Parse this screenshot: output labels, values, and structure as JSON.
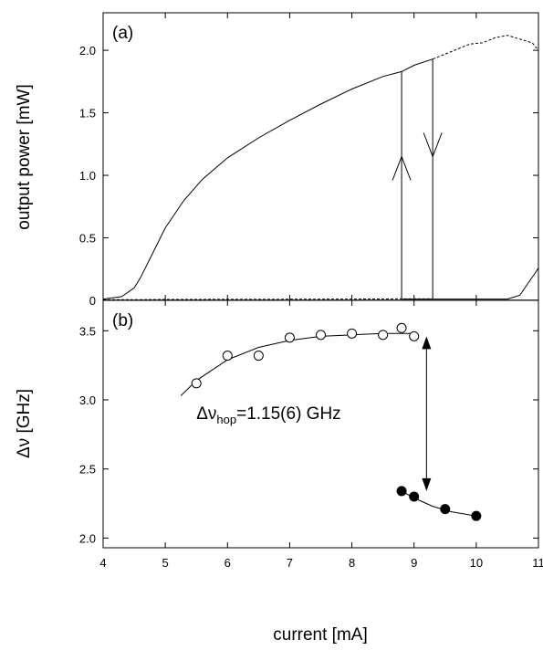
{
  "chart_data": [
    {
      "id": "a",
      "type": "line",
      "panel_label": "(a)",
      "ylabel": "output power [mW]",
      "xlim": [
        4,
        11
      ],
      "ylim": [
        0,
        2.3
      ],
      "yticks": [
        "0",
        "0.5",
        "1.0",
        "1.5",
        "2.0"
      ],
      "ytick_values": [
        0,
        0.5,
        1.0,
        1.5,
        2.0
      ],
      "series": [
        {
          "style": "solid",
          "x": [
            4.0,
            4.3,
            4.5,
            4.6,
            4.8,
            5.0,
            5.3,
            5.6,
            6.0,
            6.5,
            7.0,
            7.5,
            8.0,
            8.5,
            8.8,
            9.0,
            9.3
          ],
          "y": [
            0.01,
            0.03,
            0.1,
            0.18,
            0.38,
            0.58,
            0.8,
            0.97,
            1.14,
            1.3,
            1.44,
            1.57,
            1.69,
            1.79,
            1.83,
            1.88,
            1.93
          ]
        },
        {
          "style": "dashed",
          "x": [
            9.3,
            9.6,
            9.9,
            10.1,
            10.3,
            10.5,
            10.7,
            10.9,
            11.0
          ],
          "y": [
            1.93,
            1.99,
            2.05,
            2.06,
            2.1,
            2.12,
            2.09,
            2.06,
            2.0
          ]
        },
        {
          "style": "solid",
          "x": [
            8.8,
            9.3,
            10.0,
            10.5,
            10.7,
            10.85,
            10.95,
            11.0
          ],
          "y": [
            0.01,
            0.01,
            0.01,
            0.01,
            0.04,
            0.15,
            0.22,
            0.26
          ]
        },
        {
          "style": "dashed",
          "x": [
            4.0,
            4.5,
            5.0,
            6.0,
            7.0,
            8.0,
            8.8,
            9.3
          ],
          "y": [
            0.005,
            0.005,
            0.007,
            0.008,
            0.009,
            0.01,
            0.012,
            0.012
          ]
        },
        {
          "style": "solid",
          "x": [
            4.0,
            11.0
          ],
          "y": [
            0.0,
            0.0
          ]
        }
      ],
      "hysteresis": {
        "up_x": 8.8,
        "down_x": 9.3,
        "low": 0.01,
        "high_left": 1.83,
        "high_right": 1.93,
        "arrow_up": {
          "x": 8.8,
          "y": 1.15
        },
        "arrow_down": {
          "x": 9.3,
          "y": 1.15
        }
      }
    },
    {
      "id": "b",
      "type": "scatter",
      "panel_label": "(b)",
      "ylabel": "Δν [GHz]",
      "xlabel": "current [mA]",
      "xlim": [
        4,
        11
      ],
      "ylim": [
        1.93,
        3.72
      ],
      "xticks": [
        "4",
        "5",
        "6",
        "7",
        "8",
        "9",
        "10",
        "11"
      ],
      "xtick_values": [
        4,
        5,
        6,
        7,
        8,
        9,
        10,
        11
      ],
      "yticks": [
        "2.0",
        "2.5",
        "3.0",
        "3.5"
      ],
      "ytick_values": [
        2.0,
        2.5,
        3.0,
        3.5
      ],
      "open_points": {
        "x": [
          5.5,
          6.0,
          6.5,
          7.0,
          7.5,
          8.0,
          8.5,
          8.8,
          9.0
        ],
        "y": [
          3.12,
          3.32,
          3.32,
          3.45,
          3.47,
          3.48,
          3.47,
          3.52,
          3.46
        ]
      },
      "filled_points": {
        "x": [
          8.8,
          9.0,
          9.5,
          10.0
        ],
        "y": [
          2.34,
          2.3,
          2.21,
          2.16
        ]
      },
      "fit_open": {
        "x": [
          5.25,
          5.5,
          6.0,
          6.5,
          7.0,
          7.5,
          8.0,
          8.5,
          9.0
        ],
        "y": [
          3.03,
          3.14,
          3.29,
          3.38,
          3.43,
          3.46,
          3.47,
          3.48,
          3.48
        ]
      },
      "fit_filled": {
        "x": [
          8.8,
          9.0,
          9.3,
          9.6,
          10.0
        ],
        "y": [
          2.34,
          2.29,
          2.23,
          2.19,
          2.16
        ]
      },
      "hop_arrow": {
        "x": 9.2,
        "y_top": 3.46,
        "y_bottom": 2.34
      },
      "annotation": {
        "prefix": "Δν",
        "sub": "hop",
        "suffix": "=1.15(6) GHz",
        "x": 5.5,
        "y": 2.86
      }
    }
  ]
}
